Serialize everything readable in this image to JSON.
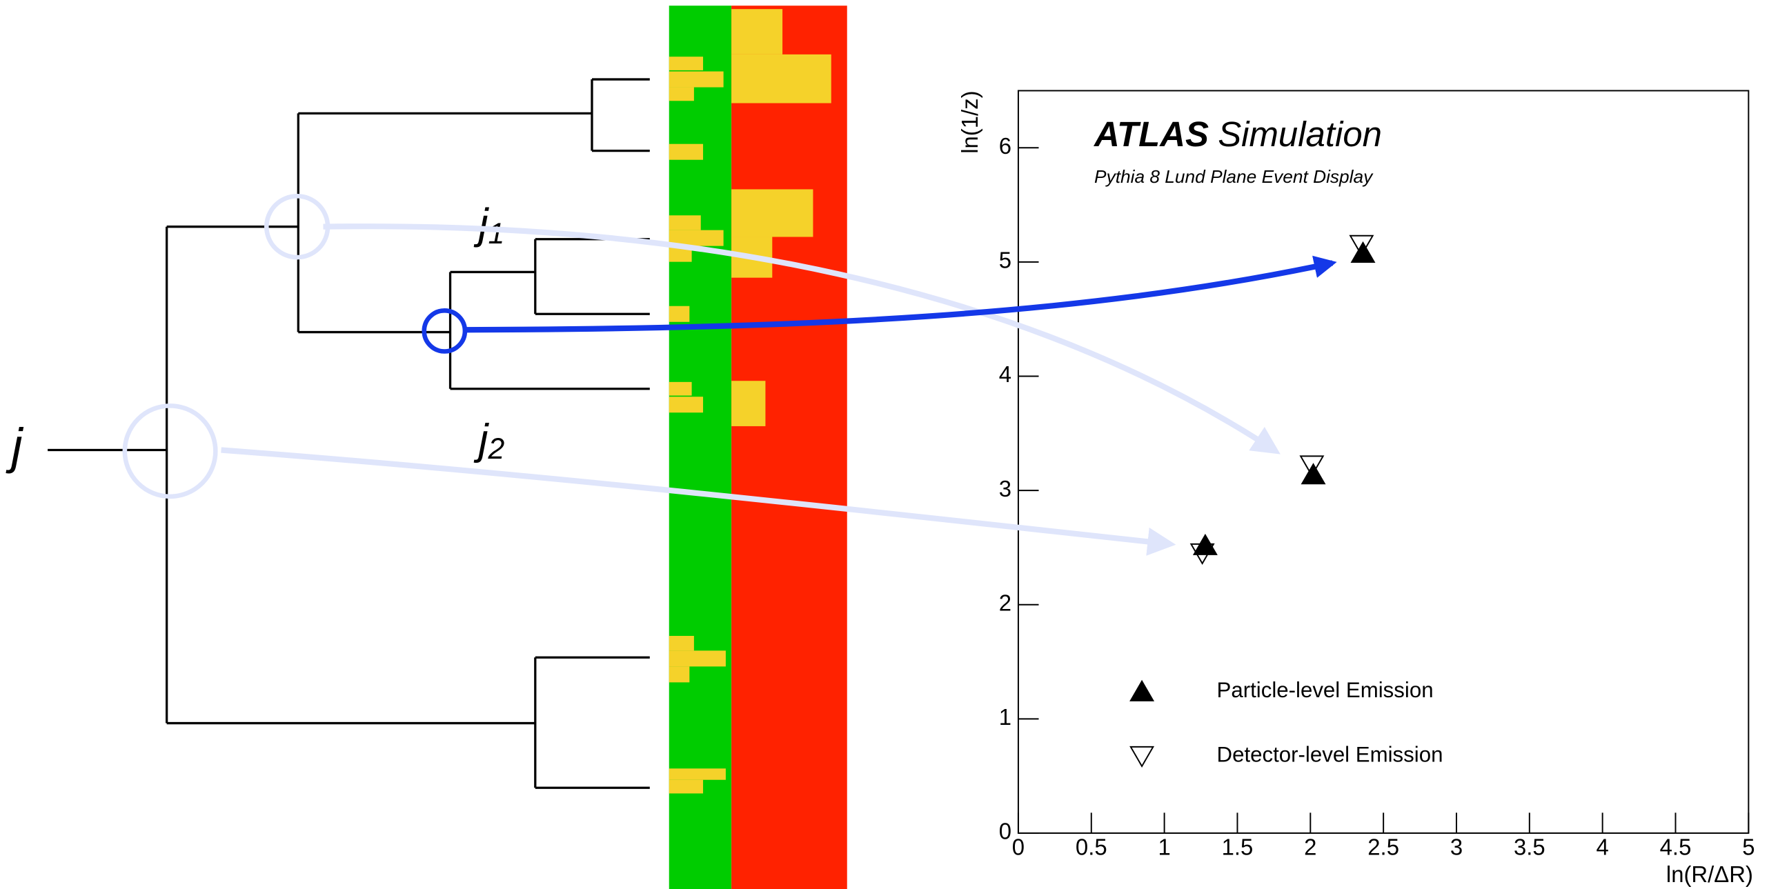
{
  "diagram": {
    "labels": [
      {
        "symbol": "j"
      },
      {
        "symbol": "j",
        "subscript": "1"
      },
      {
        "symbol": "j",
        "subscript": "2"
      }
    ]
  },
  "chart_data": {
    "type": "scatter",
    "experiment": "ATLAS",
    "title": "Simulation",
    "subtitle": "Pythia 8 Lund Plane Event Display",
    "x_label": "ln(R/ΔR)",
    "y_label": "ln(1/z)",
    "xlim": [
      0,
      5
    ],
    "xticks": [
      0,
      0.5,
      1,
      1.5,
      2,
      2.5,
      3,
      3.5,
      4,
      4.5,
      5
    ],
    "ylim": [
      0,
      6.5
    ],
    "yticks": [
      0,
      1,
      2,
      3,
      4,
      5,
      6
    ],
    "legend": "lower left",
    "series": [
      {
        "name": "Particle-level Emission",
        "marker": "triangle-up-filled",
        "color": "#000000",
        "x": [
          1.28,
          2.02,
          2.36
        ],
        "values": [
          2.52,
          3.14,
          5.08
        ]
      },
      {
        "name": "Detector-level Emission",
        "marker": "triangle-down-open",
        "color": "#000000",
        "x": [
          1.26,
          2.01,
          2.35
        ],
        "values": [
          2.45,
          3.22,
          5.15
        ]
      }
    ]
  }
}
